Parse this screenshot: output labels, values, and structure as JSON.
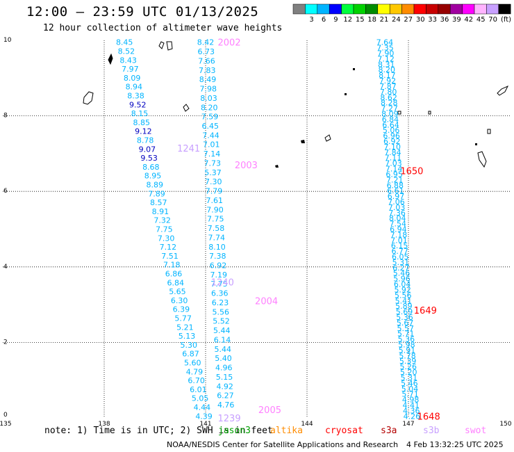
{
  "header": {
    "title": "12:00 – 23:59 UTC 01/13/2025",
    "subtitle": "12 hour collection of altimeter wave heights"
  },
  "color_scale": {
    "unit": "(ft)",
    "swatches": [
      {
        "color": "#808080",
        "label": ""
      },
      {
        "color": "#00ffff",
        "label": "3"
      },
      {
        "color": "#00b4ff",
        "label": "6"
      },
      {
        "color": "#0000ff",
        "label": "9"
      },
      {
        "color": "#00ff3c",
        "label": "12"
      },
      {
        "color": "#00d200",
        "label": "15"
      },
      {
        "color": "#008c00",
        "label": "18"
      },
      {
        "color": "#ffff00",
        "label": "21"
      },
      {
        "color": "#ffc800",
        "label": "24"
      },
      {
        "color": "#ff8c00",
        "label": "27"
      },
      {
        "color": "#ff0000",
        "label": "30"
      },
      {
        "color": "#c80000",
        "label": "33"
      },
      {
        "color": "#960000",
        "label": "36"
      },
      {
        "color": "#a000a0",
        "label": "39"
      },
      {
        "color": "#ff00ff",
        "label": "42"
      },
      {
        "color": "#ffb4ff",
        "label": "45"
      },
      {
        "color": "#c8a0ff",
        "label": "70"
      },
      {
        "color": "#000000",
        "label": ""
      }
    ]
  },
  "axes": {
    "lon_ticks": [
      "135",
      "138",
      "141",
      "144",
      "147",
      "150"
    ],
    "lat_ticks": [
      "0",
      "2",
      "4",
      "6",
      "8",
      "10"
    ]
  },
  "passes": [
    {
      "name": "track-left",
      "color": "#00b4ff",
      "lon_start": 138.6,
      "lat_start": 9.95,
      "lon_end": 140.95,
      "lat_end": 0.05,
      "values": [
        "8.45",
        "8.52",
        "8.43",
        "7.97",
        "8.09",
        "8.94",
        "8.38",
        "9.52",
        "8.15",
        "8.85",
        "9.12",
        "8.78",
        "9.07",
        "9.53",
        "8.68",
        "8.95",
        "8.89",
        "7.89",
        "8.57",
        "8.91",
        "7.32",
        "7.75",
        "7.30",
        "7.12",
        "7.51",
        "7.18",
        "6.86",
        "6.84",
        "5.65",
        "6.30",
        "6.39",
        "5.77",
        "5.21",
        "5.13",
        "5.30",
        "6.87",
        "5.60",
        "4.79",
        "6.70",
        "6.01",
        "5.05",
        "4.44",
        "4.39"
      ],
      "dark": [
        7,
        10,
        12,
        13
      ]
    },
    {
      "name": "track-middle",
      "color": "#00b4ff",
      "lon_start": 141.0,
      "lat_start": 9.95,
      "lon_end": 141.6,
      "lat_end": 0.35,
      "values": [
        "8.42",
        "6.73",
        "7.66",
        "7.83",
        "8.49",
        "7.98",
        "8.03",
        "8.20",
        "7.59",
        "6.45",
        "7.44",
        "7.01",
        "7.14",
        "7.73",
        "5.37",
        "7.30",
        "7.79",
        "7.61",
        "7.90",
        "7.75",
        "7.58",
        "7.74",
        "8.10",
        "7.38",
        "6.92",
        "7.19",
        "7.75",
        "6.36",
        "6.23",
        "5.56",
        "5.52",
        "5.44",
        "6.14",
        "5.44",
        "5.40",
        "4.96",
        "5.15",
        "4.92",
        "6.27",
        "4.76"
      ],
      "dark": []
    },
    {
      "name": "track-right",
      "color": "#00b4ff",
      "lon_start": 146.3,
      "lat_start": 9.95,
      "lon_end": 147.1,
      "lat_end": 0.05,
      "values": [
        "7.64",
        "7.35",
        "7.90",
        "7.12",
        "8.31",
        "8.20",
        "8.17",
        "7.92",
        "7.87",
        "7.80",
        "8.62",
        "8.28",
        "7.27",
        "8.09",
        "6.84",
        "6.64",
        "5.06",
        "6.96",
        "6.92",
        "7.10",
        "7.84",
        "7.11",
        "7.03",
        "7.14",
        "6.95",
        "7.21",
        "6.88",
        "6.61",
        "6.97",
        "7.06",
        "7.03",
        "7.36",
        "8.04",
        "7.54",
        "6.94",
        "7.18",
        "7.01",
        "6.15",
        "6.77",
        "6.05",
        "5.31",
        "6.27",
        "5.46",
        "5.96",
        "6.04",
        "5.92",
        "5.56",
        "5.41",
        "5.89",
        "5.69",
        "5.36",
        "5.67",
        "5.57",
        "5.71",
        "5.36",
        "5.98",
        "5.91",
        "5.78",
        "5.39",
        "5.26",
        "5.20",
        "5.31",
        "5.46",
        "5.04",
        "5.71",
        "4.98",
        "4.41",
        "4.36",
        "4.26"
      ],
      "dark": []
    }
  ],
  "pass_labels": [
    {
      "text": "2002",
      "color": "#ff80ff",
      "lon": 141.7,
      "lat": 9.95
    },
    {
      "text": "1241",
      "color": "#c8a0ff",
      "lon": 140.5,
      "lat": 7.15
    },
    {
      "text": "2003",
      "color": "#ff80ff",
      "lon": 142.2,
      "lat": 6.7
    },
    {
      "text": "1650",
      "color": "#ff0000",
      "lon": 147.1,
      "lat": 6.55
    },
    {
      "text": "1240",
      "color": "#c8a0ff",
      "lon": 141.5,
      "lat": 3.6
    },
    {
      "text": "2004",
      "color": "#ff80ff",
      "lon": 142.8,
      "lat": 3.1
    },
    {
      "text": "1649",
      "color": "#ff0000",
      "lon": 147.5,
      "lat": 2.85
    },
    {
      "text": "2005",
      "color": "#ff80ff",
      "lon": 142.9,
      "lat": 0.22
    },
    {
      "text": "1239",
      "color": "#c8a0ff",
      "lon": 141.7,
      "lat": 0.0
    },
    {
      "text": "1648",
      "color": "#ff0000",
      "lon": 147.6,
      "lat": 0.05
    }
  ],
  "footer": {
    "note_prefix": "note:  1) Time is in UTC; 2) SWH is in feet",
    "satellites": [
      {
        "name": "jason3",
        "color": "#00a000"
      },
      {
        "name": "altika",
        "color": "#ff8c00"
      },
      {
        "name": "cryosat",
        "color": "#ff0000"
      },
      {
        "name": "s3a",
        "color": "#b40000"
      },
      {
        "name": "s3b",
        "color": "#c8a0ff"
      },
      {
        "name": "swot",
        "color": "#ff80ff"
      }
    ],
    "credit": "NOAA/NESDIS Center for Satellite Applications and Research",
    "timestamp": "4 Feb 13:32:25 UTC 2025"
  }
}
